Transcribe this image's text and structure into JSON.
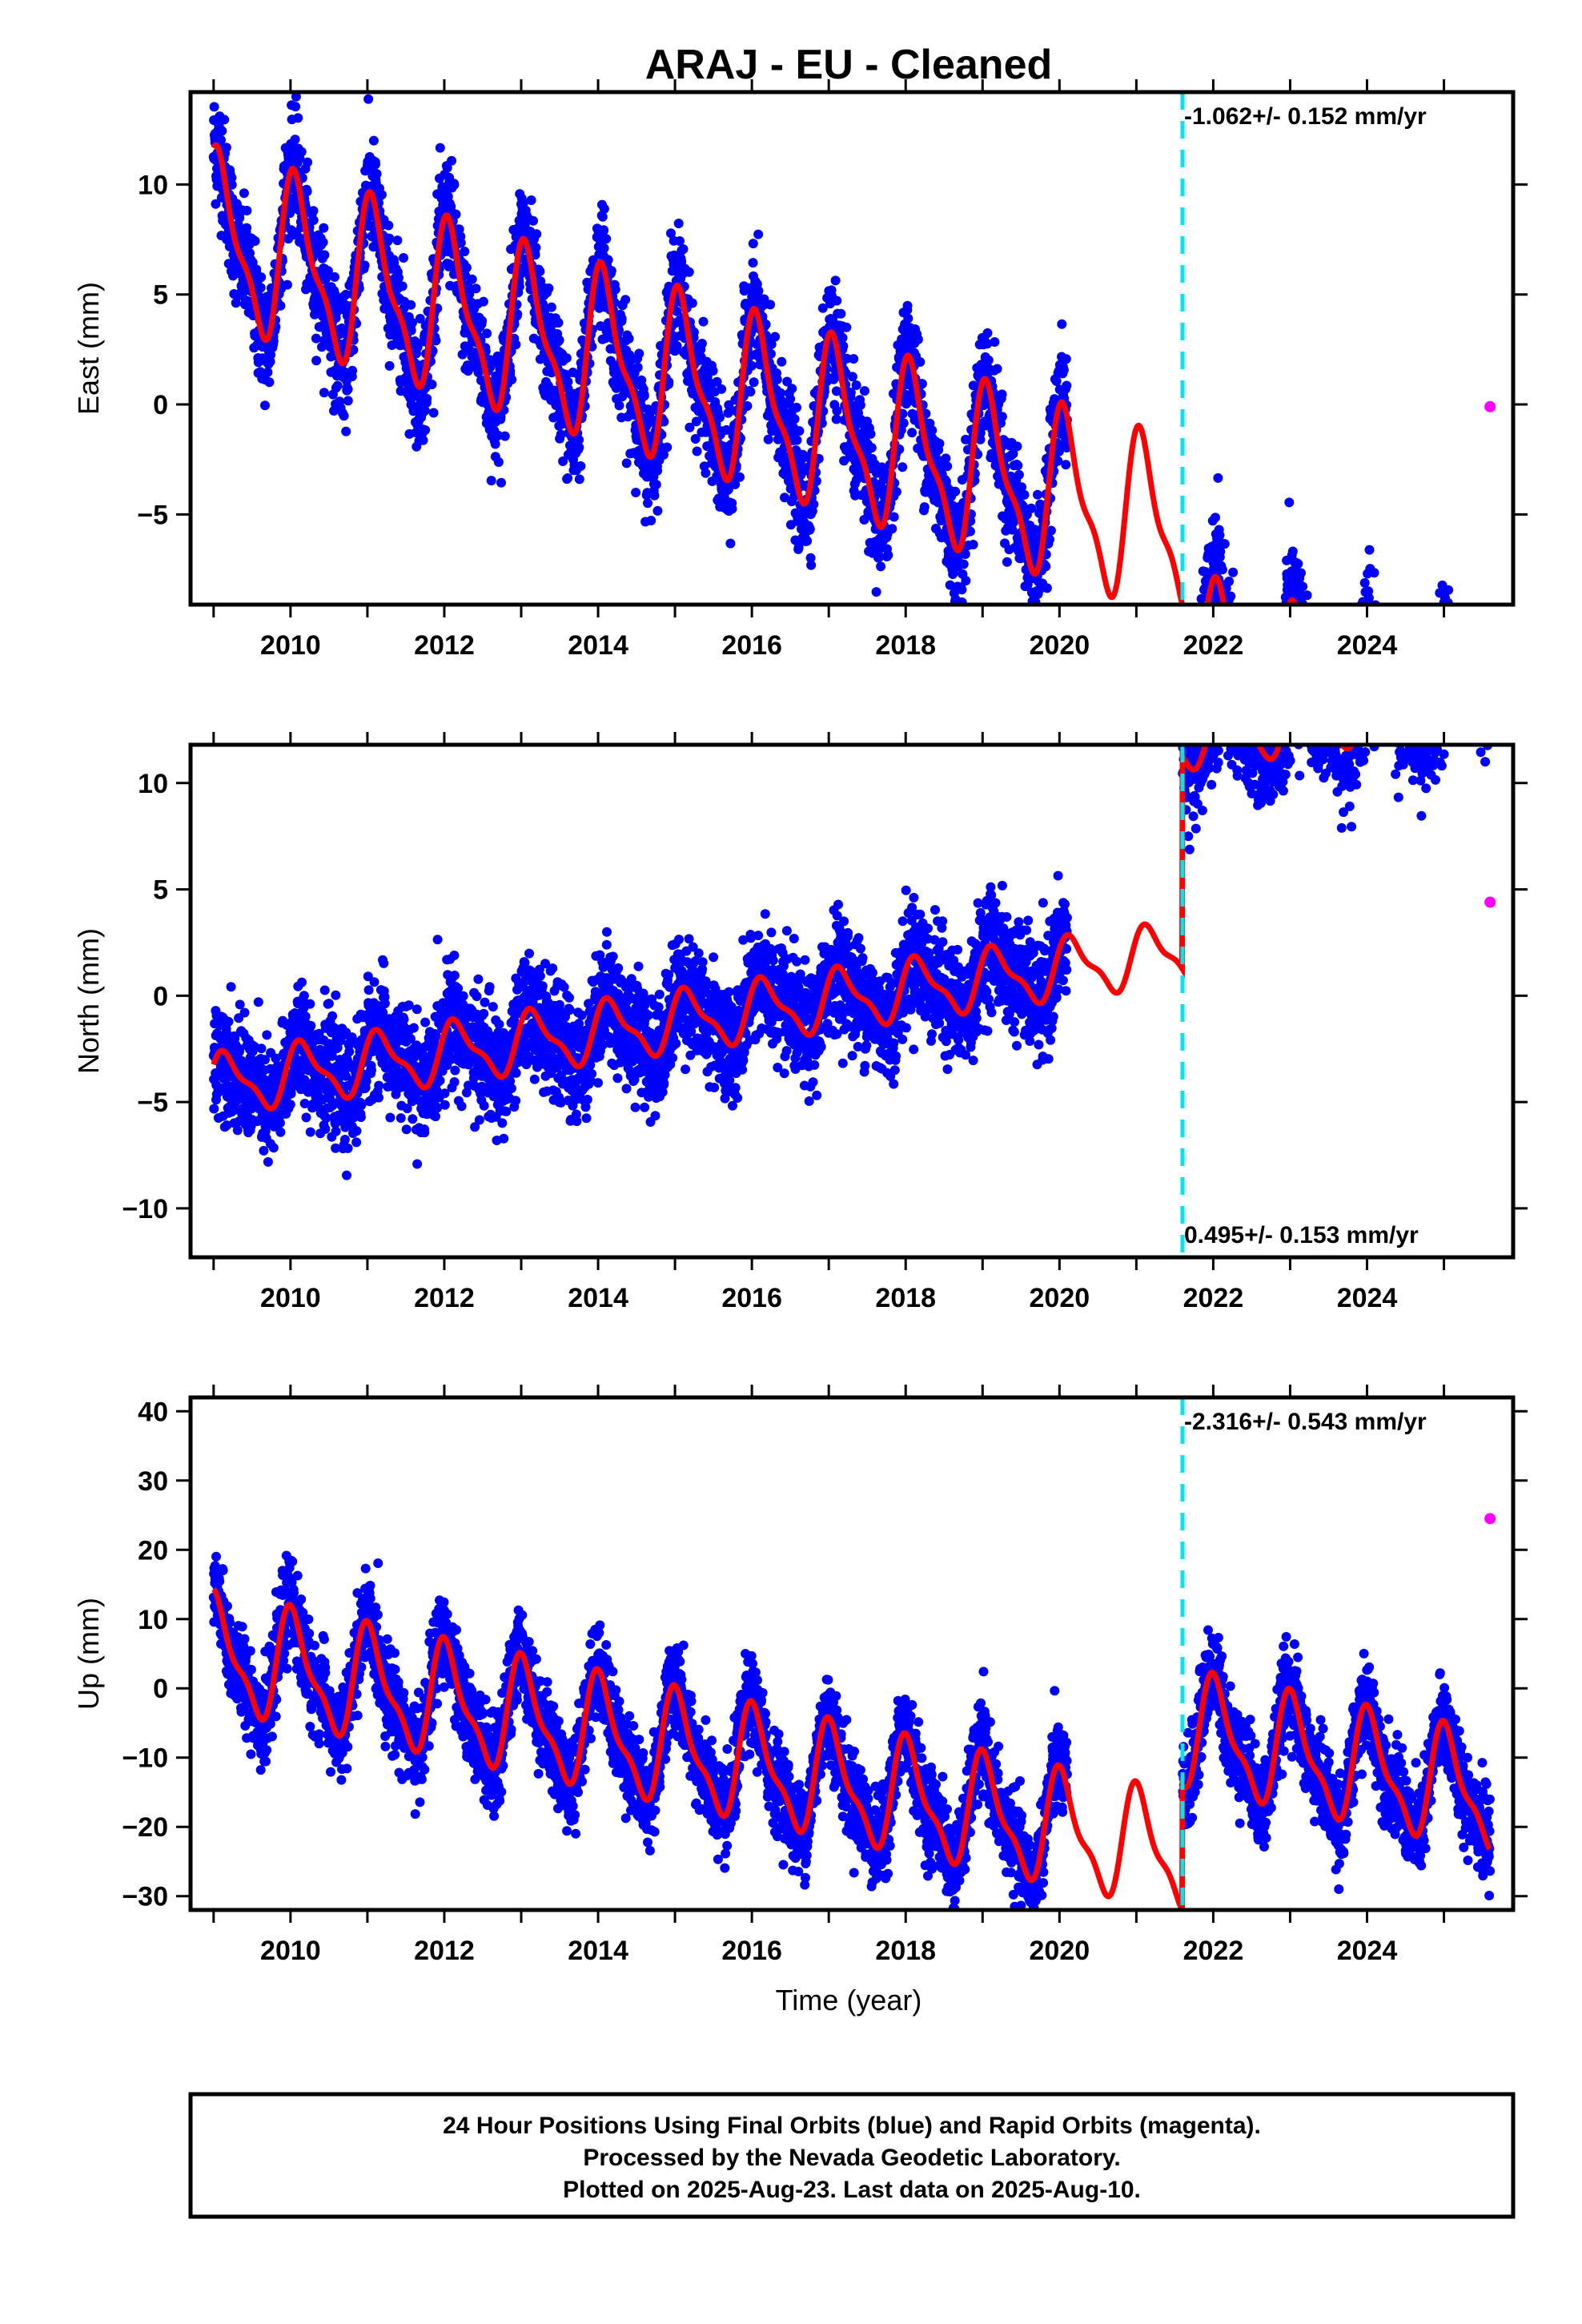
{
  "title": "ARAJ  - EU - Cleaned",
  "xlabel": "Time (year)",
  "colors": {
    "final_points": "#0000ff",
    "rapid_points": "#ff00ff",
    "model": "#ff0000",
    "break_line": "#00e5ee"
  },
  "footer": {
    "line1": "24 Hour Positions Using Final Orbits (blue) and Rapid Orbits (magenta).",
    "line2": "Processed by the Nevada Geodetic Laboratory.",
    "line3": "Plotted on 2025-Aug-23. Last data on 2025-Aug-10."
  },
  "chart_data": [
    {
      "type": "scatter",
      "panel": "east",
      "ylabel": "East (mm)",
      "rate_label": "-1.062+/- 0.152 mm/yr",
      "rate_position": "top",
      "xlim": [
        2008.7,
        2025.9
      ],
      "ylim": [
        -9.1,
        14.2
      ],
      "xticks": [
        2010,
        2012,
        2014,
        2016,
        2018,
        2020,
        2022,
        2024
      ],
      "yticks": [
        -5,
        0,
        5,
        10
      ],
      "grid": false,
      "break_epoch": 2021.6,
      "data_start": 2009.0,
      "data_end": 2025.6,
      "gaps": [
        [
          2020.1,
          2021.6
        ]
      ],
      "model": {
        "segment1": {
          "offset": 7.5,
          "rate": -1.062,
          "annual_amp": 3.5,
          "annual_phase": 1.0
        },
        "segment2": {
          "offset": 2.3,
          "rate": -1.062,
          "annual_amp": 3.0,
          "annual_phase": 1.0
        },
        "start": 2009.0,
        "end": 2025.6
      },
      "scatter_sd": 1.3,
      "rapid_points": [
        {
          "x": 2025.6,
          "y": -0.1
        }
      ]
    },
    {
      "type": "scatter",
      "panel": "north",
      "ylabel": "North (mm)",
      "rate_label": "0.495+/- 0.153 mm/yr",
      "rate_position": "bottom",
      "xlim": [
        2008.7,
        2025.9
      ],
      "ylim": [
        -12.3,
        11.8
      ],
      "xticks": [
        2010,
        2012,
        2014,
        2016,
        2018,
        2020,
        2022,
        2024
      ],
      "yticks": [
        -10,
        -5,
        0,
        5,
        10
      ],
      "grid": false,
      "break_epoch": 2021.6,
      "data_start": 2009.0,
      "data_end": 2025.6,
      "gaps": [
        [
          2020.1,
          2021.6
        ]
      ],
      "model": {
        "segment1": {
          "offset": -4.2,
          "rate": 0.495,
          "annual_amp": 1.3,
          "annual_phase": 0.5
        },
        "segment2": {
          "offset": 5.8,
          "rate": 0.495,
          "annual_amp": 1.3,
          "annual_phase": 0.5
        },
        "start": 2009.0,
        "end": 2025.6
      },
      "scatter_sd": 1.3,
      "rapid_points": [
        {
          "x": 2025.6,
          "y": 4.4
        }
      ]
    },
    {
      "type": "scatter",
      "panel": "up",
      "ylabel": "Up (mm)",
      "rate_label": "-2.316+/- 0.543 mm/yr",
      "rate_position": "top",
      "xlim": [
        2008.7,
        2025.9
      ],
      "ylim": [
        -32,
        42
      ],
      "xticks": [
        2010,
        2012,
        2014,
        2016,
        2018,
        2020,
        2022,
        2024
      ],
      "yticks": [
        -30,
        -20,
        -10,
        0,
        10,
        20,
        30,
        40
      ],
      "grid": false,
      "break_epoch": 2021.6,
      "data_start": 2009.0,
      "data_end": 2025.6,
      "gaps": [
        [
          2020.1,
          2021.6
        ]
      ],
      "model": {
        "segment1": {
          "offset": 5.0,
          "rate": -2.316,
          "annual_amp": 7.5,
          "annual_phase": 1.3
        },
        "segment2": {
          "offset": 23.0,
          "rate": -2.316,
          "annual_amp": 7.5,
          "annual_phase": 1.3
        },
        "start": 2009.0,
        "end": 2025.6
      },
      "scatter_sd": 3.2,
      "rapid_points": [
        {
          "x": 2025.6,
          "y": 24.5
        }
      ]
    }
  ]
}
